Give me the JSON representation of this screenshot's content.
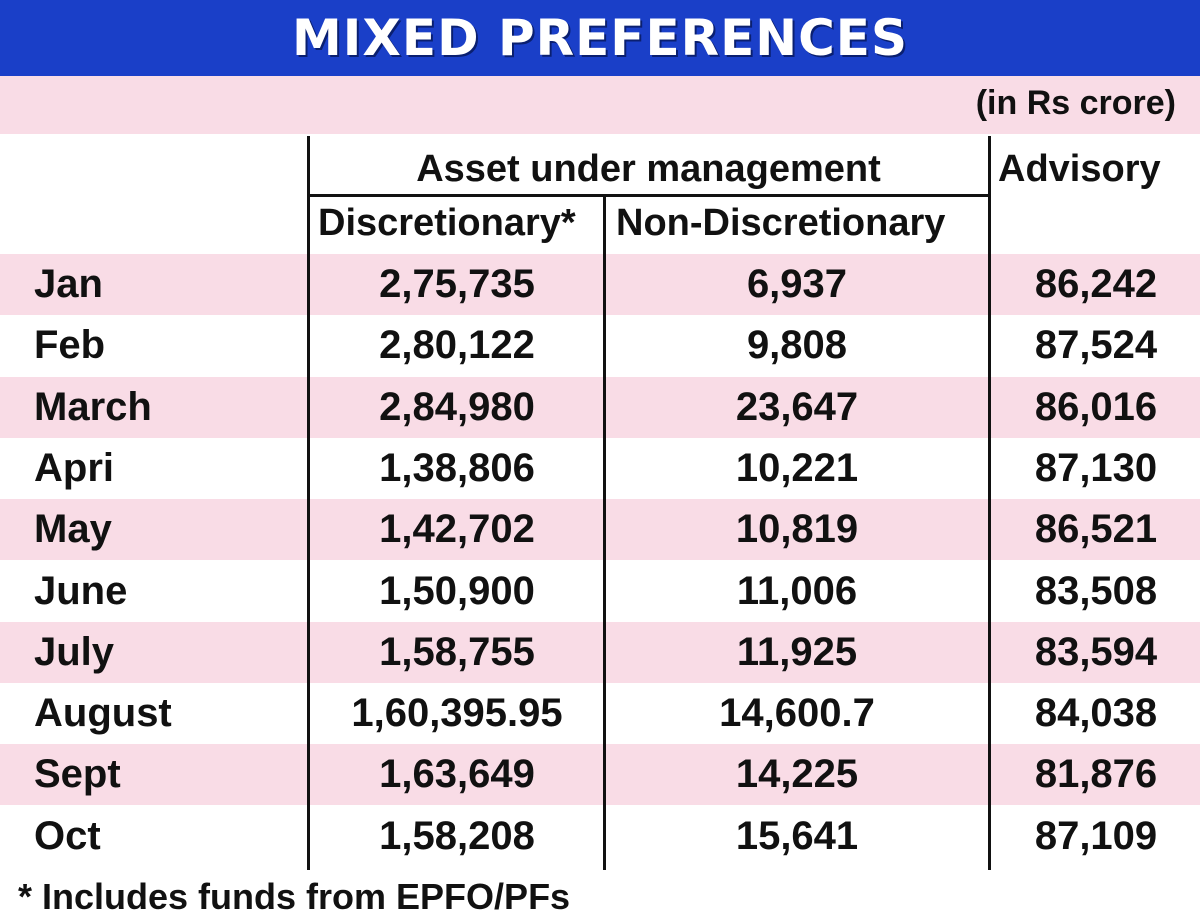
{
  "chart_data": {
    "type": "table",
    "title": "MIXED PREFERENCES",
    "unit_note": "(in Rs crore)",
    "group_header": "Asset under management",
    "columns": [
      "Discretionary*",
      "Non-Discretionary",
      "Advisory"
    ],
    "rows": [
      {
        "month": "Jan",
        "discretionary": "2,75,735",
        "non_discretionary": "6,937",
        "advisory": "86,242"
      },
      {
        "month": "Feb",
        "discretionary": "2,80,122",
        "non_discretionary": "9,808",
        "advisory": "87,524"
      },
      {
        "month": "March",
        "discretionary": "2,84,980",
        "non_discretionary": "23,647",
        "advisory": "86,016"
      },
      {
        "month": "Apri",
        "discretionary": "1,38,806",
        "non_discretionary": "10,221",
        "advisory": "87,130"
      },
      {
        "month": "May",
        "discretionary": "1,42,702",
        "non_discretionary": "10,819",
        "advisory": "86,521"
      },
      {
        "month": "June",
        "discretionary": "1,50,900",
        "non_discretionary": "11,006",
        "advisory": "83,508"
      },
      {
        "month": "July",
        "discretionary": "1,58,755",
        "non_discretionary": "11,925",
        "advisory": "83,594"
      },
      {
        "month": "August",
        "discretionary": "1,60,395.95",
        "non_discretionary": "14,600.7",
        "advisory": "84,038"
      },
      {
        "month": "Sept",
        "discretionary": "1,63,649",
        "non_discretionary": "14,225",
        "advisory": "81,876"
      },
      {
        "month": "Oct",
        "discretionary": "1,58,208",
        "non_discretionary": "15,641",
        "advisory": "87,109"
      }
    ],
    "footnote": "* Includes funds from EPFO/PFs"
  },
  "colors": {
    "banner": "#1a3fc8",
    "stripe": "#f9dce6",
    "text": "#111111"
  }
}
